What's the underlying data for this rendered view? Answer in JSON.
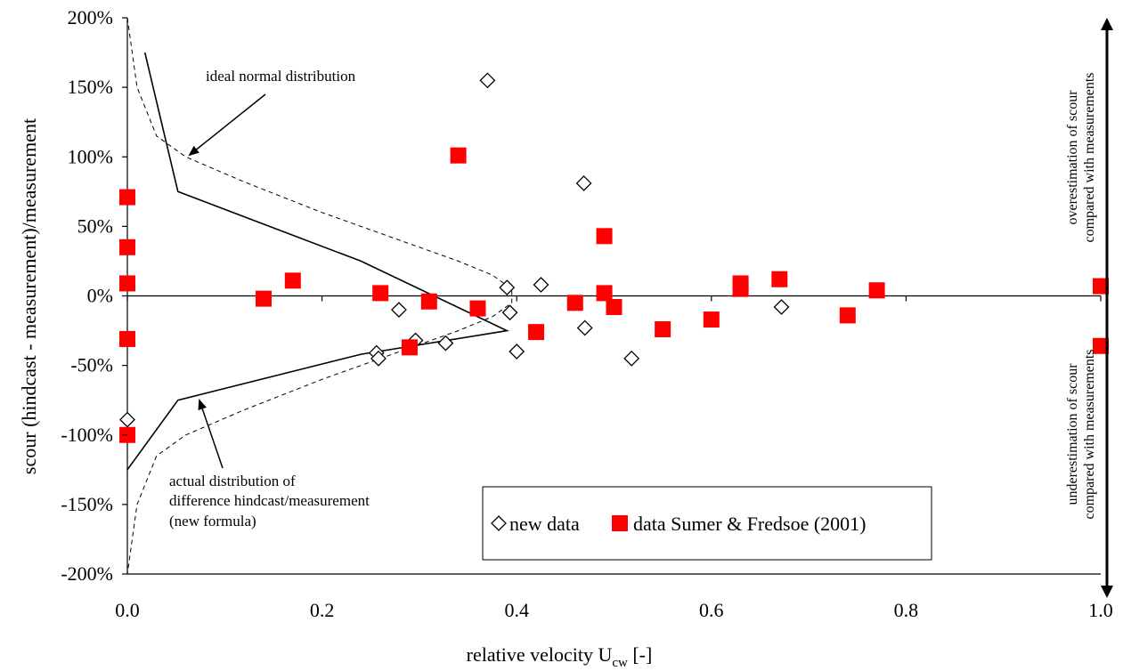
{
  "chart_data": {
    "type": "scatter",
    "xlabel_main": "relative velocity U",
    "xlabel_sub": "cw",
    "xlabel_suffix": " [-]",
    "ylabel": "scour (hindcast - measurement)/measurement",
    "xlim": [
      0,
      1
    ],
    "ylim": [
      -200,
      200
    ],
    "x_ticks": [
      0,
      0.2,
      0.4,
      0.6,
      0.8,
      1.0
    ],
    "x_tick_labels": [
      "0.0",
      "0.2",
      "0.4",
      "0.6",
      "0.8",
      "1.0"
    ],
    "y_ticks": [
      200,
      150,
      100,
      50,
      0,
      -50,
      -100,
      -150,
      -200
    ],
    "y_tick_labels": [
      "200%",
      "150%",
      "100%",
      "50%",
      "0%",
      "-50%",
      "-100%",
      "-150%",
      "-200%"
    ],
    "grid": false,
    "legend_position": "bottom-right",
    "series": [
      {
        "name": "new data",
        "marker": "diamond-open",
        "color": "#000000",
        "points": [
          [
            0.0,
            -89
          ],
          [
            0.256,
            -41
          ],
          [
            0.258,
            -45
          ],
          [
            0.279,
            -10
          ],
          [
            0.296,
            -32
          ],
          [
            0.327,
            -34
          ],
          [
            0.37,
            155
          ],
          [
            0.39,
            6
          ],
          [
            0.393,
            -12
          ],
          [
            0.4,
            -40
          ],
          [
            0.425,
            8
          ],
          [
            0.469,
            81
          ],
          [
            0.47,
            -23
          ],
          [
            0.518,
            -45
          ],
          [
            0.672,
            -8
          ]
        ]
      },
      {
        "name": "data Sumer & Fredsoe (2001)",
        "marker": "square-filled",
        "color": "#ff0000",
        "points": [
          [
            0.0,
            71
          ],
          [
            0.0,
            35
          ],
          [
            0.0,
            9
          ],
          [
            0.0,
            -31
          ],
          [
            0.0,
            -100
          ],
          [
            0.14,
            -2
          ],
          [
            0.17,
            11
          ],
          [
            0.26,
            2
          ],
          [
            0.29,
            -37
          ],
          [
            0.31,
            -4
          ],
          [
            0.34,
            101
          ],
          [
            0.36,
            -9
          ],
          [
            0.42,
            -26
          ],
          [
            0.46,
            -5
          ],
          [
            0.49,
            43
          ],
          [
            0.49,
            2
          ],
          [
            0.5,
            -8
          ],
          [
            0.55,
            -24
          ],
          [
            0.6,
            -17
          ],
          [
            0.63,
            9
          ],
          [
            0.63,
            5
          ],
          [
            0.67,
            12
          ],
          [
            0.74,
            -14
          ],
          [
            0.77,
            4
          ],
          [
            1.0,
            7
          ],
          [
            1.0,
            -36
          ]
        ]
      },
      {
        "name": "actual distribution",
        "style": "solid-line",
        "color": "#000000",
        "points": [
          [
            0.018,
            175
          ],
          [
            0.052,
            75
          ],
          [
            0.24,
            25
          ],
          [
            0.39,
            -25
          ],
          [
            0.24,
            -42
          ],
          [
            0.052,
            -75
          ],
          [
            0.0,
            -125
          ]
        ]
      },
      {
        "name": "ideal normal distribution",
        "style": "dashed-line",
        "color": "#000000",
        "points": [
          [
            0.0,
            200
          ],
          [
            0.01,
            150
          ],
          [
            0.03,
            115
          ],
          [
            0.06,
            100
          ],
          [
            0.12,
            82
          ],
          [
            0.2,
            60
          ],
          [
            0.28,
            40
          ],
          [
            0.34,
            25
          ],
          [
            0.375,
            15
          ],
          [
            0.395,
            5
          ],
          [
            0.395,
            -5
          ],
          [
            0.375,
            -15
          ],
          [
            0.34,
            -25
          ],
          [
            0.28,
            -40
          ],
          [
            0.2,
            -60
          ],
          [
            0.12,
            -82
          ],
          [
            0.06,
            -100
          ],
          [
            0.03,
            -115
          ],
          [
            0.01,
            -150
          ],
          [
            0.0,
            -200
          ]
        ]
      }
    ],
    "annotations": {
      "ideal": "ideal normal distribution",
      "actual_1": "actual distribution of",
      "actual_2": "difference hindcast/measurement",
      "actual_3": "(new formula)",
      "over_1": "overestimation of scour",
      "over_2": "compared with measurements",
      "under_1": "underestimation of scour",
      "under_2": "compared with measurements"
    },
    "legend": {
      "new_data": "new data",
      "sumer": "data Sumer & Fredsoe (2001)"
    }
  }
}
